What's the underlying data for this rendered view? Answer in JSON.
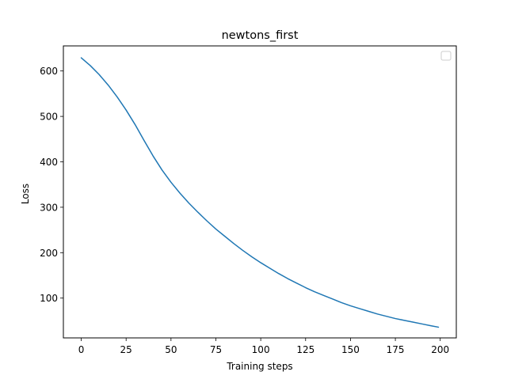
{
  "chart_data": {
    "type": "line",
    "title": "newtons_first",
    "xlabel": "Training steps",
    "ylabel": "Loss",
    "xlim": [
      -9.95,
      208.95
    ],
    "ylim": [
      12.4,
      655.2
    ],
    "xticks": [
      0,
      25,
      50,
      75,
      100,
      125,
      150,
      175,
      200
    ],
    "yticks": [
      100,
      200,
      300,
      400,
      500,
      600
    ],
    "grid": false,
    "legend": {
      "placement": "top-right",
      "entries": []
    },
    "line_color": "#1f77b4",
    "series": [
      {
        "x": [
          0,
          5,
          10,
          15,
          20,
          25,
          30,
          35,
          40,
          45,
          50,
          55,
          60,
          65,
          70,
          75,
          80,
          85,
          90,
          95,
          100,
          105,
          110,
          115,
          120,
          125,
          130,
          135,
          140,
          145,
          150,
          155,
          160,
          165,
          170,
          175,
          180,
          185,
          190,
          195,
          199
        ],
        "y": [
          629,
          612,
          592,
          569,
          543,
          514,
          482,
          447,
          413,
          382,
          355,
          331,
          309,
          289,
          270,
          252,
          236,
          220,
          205,
          191,
          178,
          166,
          154,
          143,
          133,
          123,
          114,
          106,
          98,
          90,
          83,
          77,
          71,
          65,
          60,
          55,
          51,
          47,
          43,
          39,
          36
        ]
      }
    ]
  }
}
